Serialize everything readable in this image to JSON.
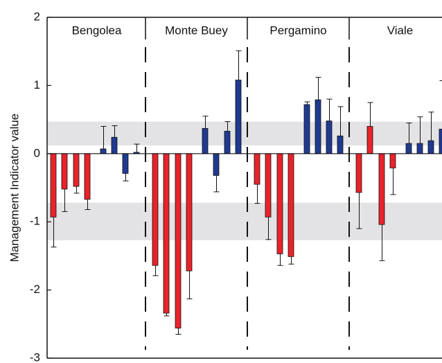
{
  "chart_data": {
    "type": "grouped-bar-error",
    "ylabel": "Management Indicator value",
    "ylim": [
      -3,
      2
    ],
    "yticks": [
      -3,
      -2,
      -1,
      0,
      1,
      2
    ],
    "bands": [
      [
        0.12,
        0.47
      ],
      [
        -1.27,
        -0.72
      ]
    ],
    "band_color": "#e3e3e5",
    "colors": [
      "#e8232a",
      "#e8232a",
      "#e8232a",
      "#e8232a",
      "#1f3a8f",
      "#1f3a8f",
      "#1f3a8f",
      "#1f3a8f"
    ],
    "groups": [
      {
        "name": "Bengolea",
        "values": [
          -0.93,
          -0.52,
          -0.48,
          -0.67,
          0.07,
          0.24,
          -0.29,
          0.02
        ],
        "errors": [
          0.44,
          0.33,
          0.1,
          0.15,
          0.33,
          0.17,
          0.11,
          0.12
        ]
      },
      {
        "name": "Monte Buey",
        "values": [
          -1.64,
          -2.34,
          -2.56,
          -1.72,
          0.37,
          -0.32,
          0.33,
          1.08
        ],
        "errors": [
          0.15,
          0.04,
          0.09,
          0.41,
          0.18,
          0.24,
          0.14,
          0.43
        ]
      },
      {
        "name": "Pergamino",
        "values": [
          -0.45,
          -0.93,
          -1.47,
          -1.51,
          0.72,
          0.79,
          0.48,
          0.26
        ],
        "errors": [
          0.28,
          0.33,
          0.17,
          0.11,
          0.04,
          0.33,
          0.32,
          0.43
        ]
      },
      {
        "name": "Viale",
        "values": [
          -0.57,
          0.4,
          -1.04,
          -0.21,
          0.15,
          0.15,
          0.19,
          0.36
        ],
        "errors": [
          0.53,
          0.35,
          0.53,
          0.39,
          0.3,
          0.39,
          0.42,
          0.71
        ]
      }
    ]
  }
}
